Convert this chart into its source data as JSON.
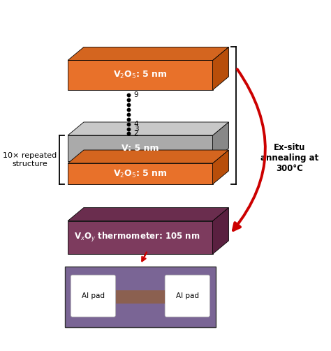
{
  "orange_color": "#E8712A",
  "orange_top": "#D4651F",
  "orange_side": "#B84E0A",
  "gray_color": "#AAAAAA",
  "gray_top": "#C8C8C8",
  "gray_side": "#888888",
  "purple_color": "#7D3B5E",
  "purple_top": "#6A2D4E",
  "purple_side": "#5A2040",
  "bg_color": "#FFFFFF",
  "text_color": "#FFFFFF",
  "black": "#000000",
  "red": "#CC0000",
  "photo_bg": "#7A6595",
  "photo_edge": "#5A4A75",
  "v2o5_label": "V$_2$O$_5$: 5 nm",
  "v_label": "V: 5 nm",
  "v2oy_label": "V$_x$O$_y$ thermometer: 105 nm",
  "repeated_label": "10× repeated\nstructure",
  "annealing_label": "Ex-situ\nannealing at\n300°C",
  "al_pad_label": "Al pad",
  "figsize": [
    4.74,
    5.03
  ],
  "dpi": 100
}
